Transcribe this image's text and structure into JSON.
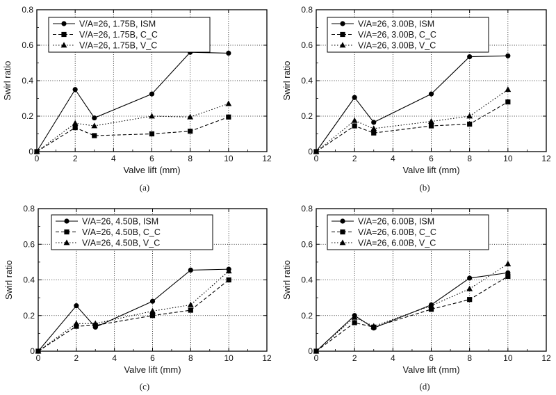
{
  "chart_data": [
    {
      "type": "line",
      "panel_label": "(a)",
      "xlabel": "Valve lift (mm)",
      "ylabel": "Swirl ratio",
      "xlim": [
        0,
        12
      ],
      "ylim": [
        0,
        0.8
      ],
      "xticks": [
        "0",
        "2",
        "4",
        "6",
        "8",
        "10",
        "12"
      ],
      "yticks": [
        "0",
        "0.2",
        "0.4",
        "0.6",
        "0.8"
      ],
      "grid": "dotted",
      "legend_position": "top-left",
      "x": [
        0,
        2,
        3,
        6,
        8,
        10
      ],
      "series": [
        {
          "name": "V/A=26, 1.75B, ISM",
          "marker": "circle",
          "line": "solid",
          "values": [
            0,
            0.35,
            0.19,
            0.325,
            0.56,
            0.555
          ]
        },
        {
          "name": "V/A=26, 1.75B, C_C",
          "marker": "square",
          "line": "dashed",
          "values": [
            0,
            0.135,
            0.09,
            0.1,
            0.115,
            0.195
          ]
        },
        {
          "name": "V/A=26, 1.75B, V_C",
          "marker": "triangle",
          "line": "dotted",
          "values": [
            0,
            0.16,
            0.145,
            0.2,
            0.195,
            0.27
          ]
        }
      ]
    },
    {
      "type": "line",
      "panel_label": "(b)",
      "xlabel": "Valve lift (mm)",
      "ylabel": "Swirl ratio",
      "xlim": [
        0,
        12
      ],
      "ylim": [
        0,
        0.8
      ],
      "xticks": [
        "0",
        "2",
        "4",
        "6",
        "8",
        "10",
        "12"
      ],
      "yticks": [
        "0",
        "0.2",
        "0.4",
        "0.6",
        "0.8"
      ],
      "grid": "dotted",
      "legend_position": "top-left",
      "x": [
        0,
        2,
        3,
        6,
        8,
        10
      ],
      "series": [
        {
          "name": "V/A=26, 3.00B, ISM",
          "marker": "circle",
          "line": "solid",
          "values": [
            0,
            0.305,
            0.165,
            0.325,
            0.535,
            0.54
          ]
        },
        {
          "name": "V/A=26, 3.00B, C_C",
          "marker": "square",
          "line": "dashed",
          "values": [
            0,
            0.145,
            0.105,
            0.145,
            0.155,
            0.28
          ]
        },
        {
          "name": "V/A=26, 3.00B, V_C",
          "marker": "triangle",
          "line": "dotted",
          "values": [
            0,
            0.175,
            0.13,
            0.17,
            0.2,
            0.35
          ]
        }
      ]
    },
    {
      "type": "line",
      "panel_label": "(c)",
      "xlabel": "Valve lift (mm)",
      "ylabel": "Swirl ratio",
      "xlim": [
        0,
        12
      ],
      "ylim": [
        0,
        0.8
      ],
      "xticks": [
        "0",
        "2",
        "4",
        "6",
        "8",
        "10",
        "12"
      ],
      "yticks": [
        "0",
        "0.2",
        "0.4",
        "0.6",
        "0.8"
      ],
      "grid": "dotted",
      "legend_position": "top-left",
      "x": [
        0,
        2,
        3,
        6,
        8,
        10
      ],
      "series": [
        {
          "name": "V/A=26, 4.50B, ISM",
          "marker": "circle",
          "line": "solid",
          "values": [
            0,
            0.255,
            0.135,
            0.28,
            0.455,
            0.46
          ]
        },
        {
          "name": "V/A=26, 4.50B, C_C",
          "marker": "square",
          "line": "dashed",
          "values": [
            0,
            0.14,
            0.145,
            0.2,
            0.23,
            0.4
          ]
        },
        {
          "name": "V/A=26, 4.50B, V_C",
          "marker": "triangle",
          "line": "dotted",
          "values": [
            0,
            0.155,
            0.155,
            0.225,
            0.26,
            0.45
          ]
        }
      ]
    },
    {
      "type": "line",
      "panel_label": "(d)",
      "xlabel": "Valve lift (mm)",
      "ylabel": "Swirl ratio",
      "xlim": [
        0,
        12
      ],
      "ylim": [
        0,
        0.8
      ],
      "xticks": [
        "0",
        "2",
        "4",
        "6",
        "8",
        "10",
        "12"
      ],
      "yticks": [
        "0",
        "0.2",
        "0.4",
        "0.6",
        "0.8"
      ],
      "grid": "dotted",
      "legend_position": "top-left",
      "x": [
        0,
        2,
        3,
        6,
        8,
        10
      ],
      "series": [
        {
          "name": "V/A=26, 6.00B, ISM",
          "marker": "circle",
          "line": "solid",
          "values": [
            0,
            0.2,
            0.13,
            0.26,
            0.41,
            0.44
          ]
        },
        {
          "name": "V/A=26, 6.00B, C_C",
          "marker": "square",
          "line": "dashed",
          "values": [
            0,
            0.16,
            0.135,
            0.235,
            0.29,
            0.42
          ]
        },
        {
          "name": "V/A=26, 6.00B, V_C",
          "marker": "triangle",
          "line": "dotted",
          "values": [
            0,
            0.19,
            0.14,
            0.255,
            0.35,
            0.49
          ]
        }
      ]
    }
  ]
}
